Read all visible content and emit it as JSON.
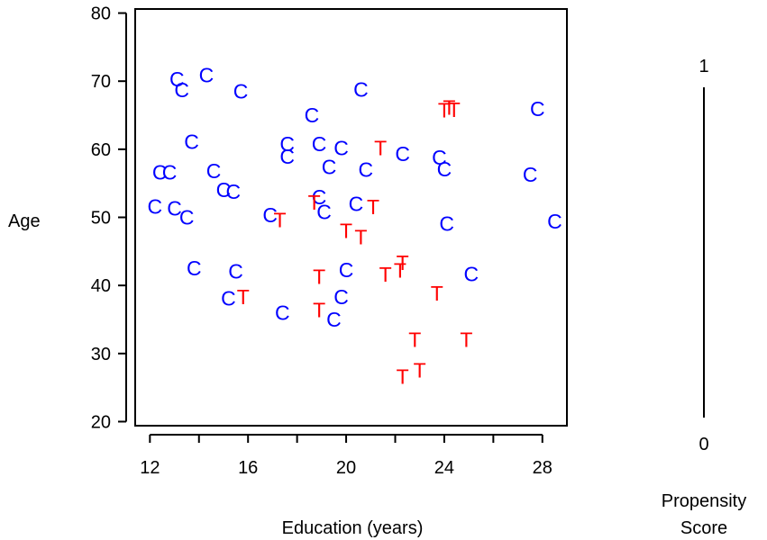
{
  "chart_data": {
    "type": "scatter",
    "title": "",
    "xlabel": "Education (years)",
    "ylabel": "Age",
    "xlim": [
      11.4,
      29.0
    ],
    "ylim": [
      19.4,
      80.6
    ],
    "x_ticks": [
      12,
      14,
      16,
      18,
      20,
      22,
      24,
      26,
      28
    ],
    "x_tick_labels": [
      "12",
      "16",
      "20",
      "24",
      "28"
    ],
    "y_ticks": [
      20,
      30,
      40,
      50,
      60,
      70,
      80
    ],
    "y_tick_labels": [
      "20",
      "30",
      "40",
      "50",
      "60",
      "70",
      "80"
    ],
    "grid": false,
    "colors": {
      "C": "#0000ff",
      "T": "#ff0000",
      "axis": "#000000"
    },
    "series": [
      {
        "marker": "C",
        "color": "#0000ff",
        "points": [
          [
            13.1,
            70.3
          ],
          [
            14.3,
            70.9
          ],
          [
            13.3,
            68.7
          ],
          [
            15.7,
            68.5
          ],
          [
            20.6,
            68.8
          ],
          [
            27.8,
            65.9
          ],
          [
            18.6,
            65.0
          ],
          [
            13.7,
            61.1
          ],
          [
            17.6,
            60.8
          ],
          [
            18.9,
            60.8
          ],
          [
            19.8,
            60.2
          ],
          [
            17.6,
            58.9
          ],
          [
            22.3,
            59.3
          ],
          [
            23.8,
            58.8
          ],
          [
            12.4,
            56.6
          ],
          [
            12.8,
            56.6
          ],
          [
            14.6,
            56.8
          ],
          [
            19.3,
            57.4
          ],
          [
            20.8,
            57.0
          ],
          [
            24.0,
            57.1
          ],
          [
            27.5,
            56.3
          ],
          [
            15.0,
            54.0
          ],
          [
            15.4,
            53.8
          ],
          [
            18.9,
            53.0
          ],
          [
            12.2,
            51.6
          ],
          [
            13.0,
            51.3
          ],
          [
            13.5,
            50.0
          ],
          [
            16.9,
            50.3
          ],
          [
            19.1,
            50.8
          ],
          [
            20.4,
            52.0
          ],
          [
            24.1,
            49.1
          ],
          [
            28.5,
            49.4
          ],
          [
            13.8,
            42.5
          ],
          [
            15.5,
            42.1
          ],
          [
            20.0,
            42.3
          ],
          [
            25.1,
            41.7
          ],
          [
            15.2,
            38.1
          ],
          [
            19.8,
            38.3
          ],
          [
            17.4,
            36.0
          ],
          [
            19.5,
            35.0
          ]
        ]
      },
      {
        "marker": "T",
        "color": "#ff0000",
        "points": [
          [
            24.0,
            65.7
          ],
          [
            24.2,
            66.1
          ],
          [
            24.4,
            65.8
          ],
          [
            21.4,
            60.2
          ],
          [
            18.7,
            52.2
          ],
          [
            21.1,
            51.5
          ],
          [
            17.3,
            49.6
          ],
          [
            20.0,
            48.0
          ],
          [
            20.6,
            47.1
          ],
          [
            22.3,
            43.3
          ],
          [
            22.2,
            42.2
          ],
          [
            21.6,
            41.6
          ],
          [
            18.9,
            41.3
          ],
          [
            15.8,
            38.3
          ],
          [
            23.7,
            38.8
          ],
          [
            18.9,
            36.4
          ],
          [
            22.8,
            32.0
          ],
          [
            24.9,
            32.0
          ],
          [
            23.0,
            27.5
          ],
          [
            22.3,
            26.6
          ]
        ]
      }
    ],
    "side_scale": {
      "top_label": "1",
      "bottom_label": "0",
      "title_lines": [
        "Propensity",
        "Score"
      ]
    }
  }
}
